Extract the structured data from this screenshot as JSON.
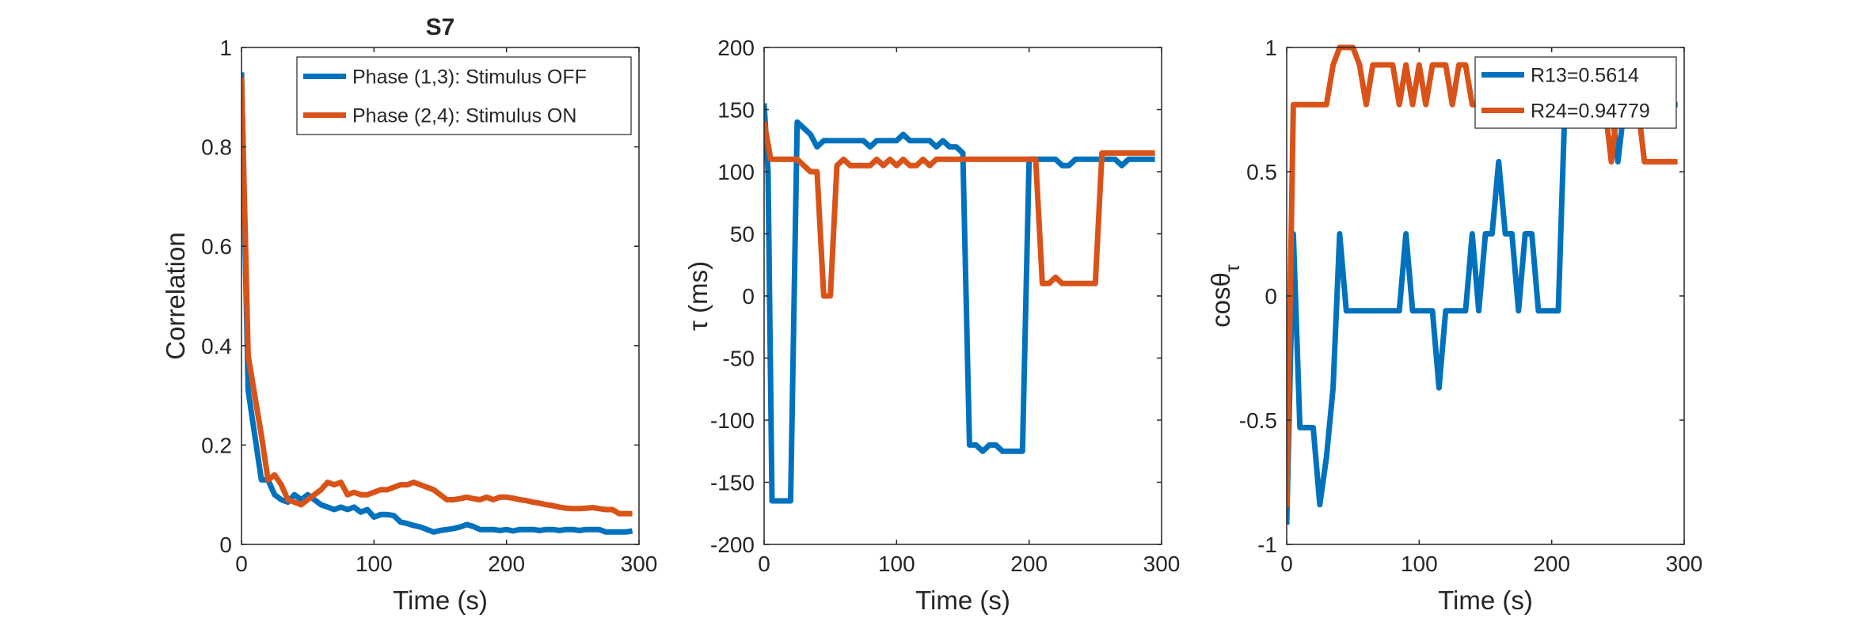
{
  "chart_data": [
    {
      "type": "line",
      "title": "S7",
      "xlabel": "Time (s)",
      "ylabel": "Correlation",
      "xlim": [
        0,
        300
      ],
      "ylim": [
        0,
        1
      ],
      "xticks": [
        "0",
        "100",
        "200",
        "300"
      ],
      "yticks": [
        "0",
        "0.2",
        "0.4",
        "0.6",
        "0.8",
        "1"
      ],
      "legend_position": "top-right",
      "series": [
        {
          "name": "Phase (1,3): Stimulus OFF",
          "color": "#0072BD",
          "x": [
            0,
            5,
            10,
            15,
            20,
            25,
            30,
            35,
            40,
            45,
            50,
            55,
            60,
            65,
            70,
            75,
            80,
            85,
            90,
            95,
            100,
            105,
            110,
            115,
            120,
            125,
            130,
            135,
            140,
            145,
            150,
            155,
            160,
            165,
            170,
            175,
            180,
            185,
            190,
            195,
            200,
            205,
            210,
            215,
            220,
            225,
            230,
            235,
            240,
            245,
            250,
            255,
            260,
            265,
            270,
            275,
            280,
            285,
            290,
            295
          ],
          "y": [
            0.95,
            0.31,
            0.22,
            0.13,
            0.13,
            0.1,
            0.09,
            0.085,
            0.1,
            0.09,
            0.1,
            0.09,
            0.08,
            0.075,
            0.07,
            0.075,
            0.07,
            0.075,
            0.065,
            0.07,
            0.055,
            0.06,
            0.06,
            0.058,
            0.045,
            0.042,
            0.038,
            0.035,
            0.03,
            0.025,
            0.028,
            0.03,
            0.032,
            0.035,
            0.04,
            0.036,
            0.03,
            0.03,
            0.03,
            0.028,
            0.03,
            0.027,
            0.03,
            0.03,
            0.03,
            0.028,
            0.03,
            0.03,
            0.028,
            0.03,
            0.03,
            0.028,
            0.03,
            0.03,
            0.03,
            0.025,
            0.025,
            0.025,
            0.025,
            0.027
          ]
        },
        {
          "name": "Phase (2,4): Stimulus ON",
          "color": "#D95319",
          "x": [
            0,
            5,
            10,
            15,
            20,
            25,
            30,
            35,
            40,
            45,
            50,
            55,
            60,
            65,
            70,
            75,
            80,
            85,
            90,
            95,
            100,
            105,
            110,
            115,
            120,
            125,
            130,
            135,
            140,
            145,
            150,
            155,
            160,
            165,
            170,
            175,
            180,
            185,
            190,
            195,
            200,
            205,
            210,
            215,
            220,
            225,
            230,
            235,
            240,
            245,
            250,
            255,
            260,
            265,
            270,
            275,
            280,
            285,
            290,
            295
          ],
          "y": [
            0.94,
            0.38,
            0.3,
            0.22,
            0.13,
            0.14,
            0.12,
            0.09,
            0.085,
            0.08,
            0.09,
            0.1,
            0.11,
            0.125,
            0.12,
            0.125,
            0.1,
            0.105,
            0.1,
            0.1,
            0.105,
            0.11,
            0.11,
            0.115,
            0.12,
            0.12,
            0.125,
            0.12,
            0.115,
            0.11,
            0.1,
            0.09,
            0.09,
            0.092,
            0.095,
            0.092,
            0.09,
            0.095,
            0.09,
            0.095,
            0.095,
            0.093,
            0.09,
            0.088,
            0.085,
            0.083,
            0.08,
            0.078,
            0.075,
            0.073,
            0.072,
            0.072,
            0.073,
            0.074,
            0.072,
            0.07,
            0.07,
            0.062,
            0.062,
            0.062
          ]
        }
      ]
    },
    {
      "type": "line",
      "title": "",
      "xlabel": "Time (s)",
      "ylabel": "τ (ms)",
      "xlim": [
        0,
        300
      ],
      "ylim": [
        -200,
        200
      ],
      "xticks": [
        "0",
        "100",
        "200",
        "300"
      ],
      "yticks": [
        "-200",
        "-150",
        "-100",
        "-50",
        "0",
        "50",
        "100",
        "150",
        "200"
      ],
      "series": [
        {
          "color": "#0072BD",
          "x": [
            0,
            3,
            6,
            10,
            15,
            20,
            25,
            30,
            35,
            40,
            45,
            50,
            55,
            60,
            65,
            70,
            75,
            80,
            85,
            90,
            95,
            100,
            105,
            110,
            115,
            120,
            125,
            130,
            135,
            140,
            145,
            150,
            155,
            160,
            165,
            170,
            175,
            180,
            185,
            190,
            195,
            200,
            205,
            210,
            215,
            220,
            225,
            230,
            235,
            240,
            245,
            250,
            255,
            260,
            265,
            270,
            275,
            280,
            285,
            290,
            295
          ],
          "y": [
            155,
            100,
            -165,
            -165,
            -165,
            -165,
            140,
            135,
            130,
            120,
            125,
            125,
            125,
            125,
            125,
            125,
            125,
            120,
            125,
            125,
            125,
            125,
            130,
            125,
            125,
            125,
            125,
            120,
            125,
            120,
            120,
            115,
            -120,
            -120,
            -125,
            -120,
            -120,
            -125,
            -125,
            -125,
            -125,
            110,
            110,
            110,
            110,
            110,
            105,
            105,
            110,
            110,
            110,
            110,
            110,
            110,
            110,
            105,
            110,
            110,
            110,
            110,
            110
          ]
        },
        {
          "color": "#D95319",
          "x": [
            0,
            5,
            10,
            15,
            20,
            25,
            30,
            35,
            40,
            45,
            50,
            55,
            60,
            65,
            70,
            75,
            80,
            85,
            90,
            95,
            100,
            105,
            110,
            115,
            120,
            125,
            130,
            135,
            140,
            145,
            150,
            155,
            160,
            165,
            170,
            175,
            180,
            185,
            190,
            195,
            200,
            205,
            210,
            215,
            220,
            225,
            230,
            235,
            240,
            245,
            250,
            255,
            260,
            265,
            270,
            275,
            280,
            285,
            290,
            295
          ],
          "y": [
            140,
            110,
            110,
            110,
            110,
            110,
            105,
            100,
            100,
            0,
            0,
            105,
            110,
            105,
            105,
            105,
            105,
            110,
            105,
            110,
            105,
            110,
            105,
            105,
            110,
            105,
            110,
            110,
            110,
            110,
            110,
            110,
            110,
            110,
            110,
            110,
            110,
            110,
            110,
            110,
            110,
            110,
            10,
            10,
            15,
            10,
            10,
            10,
            10,
            10,
            10,
            115,
            115,
            115,
            115,
            115,
            115,
            115,
            115,
            115
          ]
        }
      ]
    },
    {
      "type": "line",
      "title": "",
      "xlabel": "Time (s)",
      "ylabel": "cosθ",
      "ylabel_subscript": "τ",
      "xlim": [
        0,
        300
      ],
      "ylim": [
        -1,
        1
      ],
      "xticks": [
        "0",
        "100",
        "200",
        "300"
      ],
      "yticks": [
        "-1",
        "-0.5",
        "0",
        "0.5",
        "1"
      ],
      "legend_position": "top-right",
      "series": [
        {
          "name": "R13=0.5614",
          "color": "#0072BD",
          "x": [
            0,
            5,
            10,
            15,
            20,
            25,
            30,
            35,
            40,
            45,
            50,
            55,
            60,
            65,
            70,
            75,
            80,
            85,
            90,
            95,
            100,
            105,
            110,
            115,
            120,
            125,
            130,
            135,
            140,
            145,
            150,
            155,
            160,
            165,
            170,
            175,
            180,
            185,
            190,
            195,
            200,
            205,
            210,
            215,
            220,
            225,
            230,
            235,
            240,
            245,
            250,
            255,
            260,
            265,
            270,
            275,
            280,
            285,
            290,
            295
          ],
          "y": [
            -0.92,
            0.25,
            -0.53,
            -0.53,
            -0.53,
            -0.84,
            -0.65,
            -0.37,
            0.25,
            -0.06,
            -0.06,
            -0.06,
            -0.06,
            -0.06,
            -0.06,
            -0.06,
            -0.06,
            -0.06,
            0.25,
            -0.06,
            -0.06,
            -0.06,
            -0.06,
            -0.37,
            -0.06,
            -0.06,
            -0.06,
            -0.06,
            0.25,
            -0.06,
            0.25,
            0.25,
            0.54,
            0.25,
            0.25,
            -0.06,
            0.25,
            0.25,
            -0.06,
            -0.06,
            -0.06,
            -0.06,
            0.77,
            0.77,
            0.77,
            0.77,
            0.77,
            0.77,
            0.77,
            0.77,
            0.54,
            0.77,
            0.77,
            0.77,
            0.77,
            0.77,
            0.77,
            0.77,
            0.77,
            0.77
          ]
        },
        {
          "name": "R24=0.94779",
          "color": "#D95319",
          "x": [
            0,
            5,
            10,
            15,
            20,
            25,
            30,
            35,
            40,
            45,
            50,
            55,
            60,
            65,
            70,
            75,
            80,
            85,
            90,
            95,
            100,
            105,
            110,
            115,
            120,
            125,
            130,
            135,
            140,
            145,
            150,
            155,
            160,
            165,
            170,
            175,
            180,
            185,
            190,
            195,
            200,
            205,
            210,
            215,
            220,
            225,
            230,
            235,
            240,
            245,
            250,
            255,
            260,
            265,
            270,
            275,
            280,
            285,
            290,
            295
          ],
          "y": [
            -0.85,
            0.77,
            0.77,
            0.77,
            0.77,
            0.77,
            0.77,
            0.93,
            1.0,
            1.0,
            1.0,
            0.93,
            0.77,
            0.93,
            0.93,
            0.93,
            0.93,
            0.77,
            0.93,
            0.77,
            0.93,
            0.77,
            0.93,
            0.93,
            0.93,
            0.77,
            0.93,
            0.93,
            0.77,
            0.77,
            0.77,
            0.77,
            0.77,
            0.77,
            0.77,
            0.77,
            0.77,
            0.77,
            0.77,
            0.77,
            0.77,
            0.77,
            0.77,
            0.77,
            0.77,
            0.77,
            0.77,
            0.77,
            0.77,
            0.54,
            0.77,
            0.77,
            0.77,
            0.77,
            0.54,
            0.54,
            0.54,
            0.54,
            0.54,
            0.54
          ]
        }
      ]
    }
  ]
}
